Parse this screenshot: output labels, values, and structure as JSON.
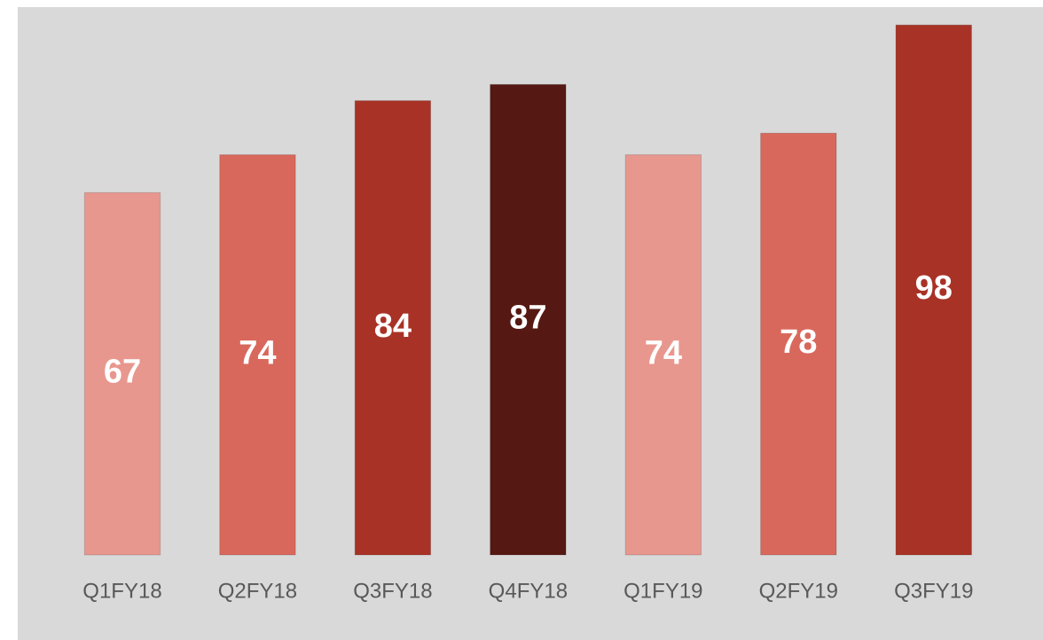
{
  "chart_data": {
    "type": "bar",
    "categories": [
      "Q1FY18",
      "Q2FY18",
      "Q3FY18",
      "Q4FY18",
      "Q1FY19",
      "Q2FY19",
      "Q3FY19"
    ],
    "values": [
      67,
      74,
      84,
      87,
      74,
      78,
      98
    ],
    "colors": [
      "#e8978e",
      "#d9685c",
      "#a83226",
      "#561812",
      "#e8978e",
      "#d9685c",
      "#a83226"
    ],
    "ylim": [
      0,
      100
    ]
  }
}
